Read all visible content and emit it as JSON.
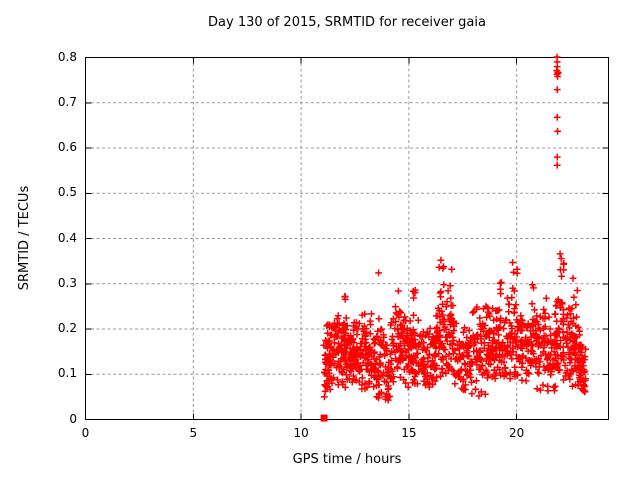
{
  "chart_data": {
    "type": "scatter",
    "title": "Day 130 of 2015, SRMTID for receiver gaia",
    "xlabel": "GPS time / hours",
    "ylabel": "SRMTID / TECUs",
    "xlim": [
      0,
      24.26
    ],
    "ylim": [
      0,
      0.8
    ],
    "xticks": [
      0,
      5,
      10,
      15,
      20
    ],
    "xtick_labels": [
      "0",
      "5",
      "10",
      "15",
      "20"
    ],
    "yticks": [
      0,
      0.1,
      0.2,
      0.3,
      0.4,
      0.5,
      0.6,
      0.7,
      0.8
    ],
    "ytick_labels": [
      "0",
      "0.1",
      "0.2",
      "0.3",
      "0.4",
      "0.5",
      "0.6",
      "0.7",
      "0.8"
    ],
    "grid": true,
    "legend": false,
    "marker": {
      "shape": "plus",
      "color": "#ff0000",
      "size": 7
    },
    "series": [
      {
        "name": "SRMTID",
        "seed": 20150130,
        "zero_point": {
          "x": 11.07,
          "y": 0.003,
          "marker": "filled-square"
        },
        "high_outlier_points": [
          [
            21.87,
            0.801
          ],
          [
            21.88,
            0.79
          ],
          [
            21.88,
            0.78
          ],
          [
            21.86,
            0.771
          ],
          [
            21.91,
            0.767
          ],
          [
            21.87,
            0.763
          ],
          [
            21.9,
            0.758
          ],
          [
            21.93,
            0.766
          ],
          [
            21.88,
            0.729
          ],
          [
            21.88,
            0.668
          ],
          [
            21.9,
            0.637
          ],
          [
            21.88,
            0.58
          ],
          [
            21.88,
            0.562
          ]
        ],
        "low_stray_points": [
          [
            11.08,
            0.05
          ],
          [
            11.12,
            0.062
          ],
          [
            13.92,
            0.045
          ],
          [
            13.97,
            0.056
          ],
          [
            14.03,
            0.05
          ],
          [
            17.62,
            0.066
          ],
          [
            18.25,
            0.052
          ],
          [
            18.36,
            0.061
          ],
          [
            18.55,
            0.056
          ],
          [
            20.95,
            0.068
          ],
          [
            21.1,
            0.065
          ],
          [
            21.22,
            0.076
          ],
          [
            22.85,
            0.075
          ],
          [
            23.02,
            0.068
          ],
          [
            23.12,
            0.073
          ]
        ],
        "cloud_bands": [
          {
            "x0": 11.05,
            "x1": 11.45,
            "n": 55,
            "c0": 0.13,
            "c1": 0.15,
            "spread": 0.045,
            "ymin": 0.045,
            "ymax": 0.22
          },
          {
            "x0": 11.45,
            "x1": 12.1,
            "n": 75,
            "c0": 0.155,
            "c1": 0.15,
            "spread": 0.042,
            "ymin": 0.07,
            "ymax": 0.26
          },
          {
            "x0": 12.1,
            "x1": 12.8,
            "n": 80,
            "c0": 0.15,
            "c1": 0.14,
            "spread": 0.04,
            "ymin": 0.08,
            "ymax": 0.25
          },
          {
            "x0": 12.8,
            "x1": 13.5,
            "n": 75,
            "c0": 0.14,
            "c1": 0.15,
            "spread": 0.045,
            "ymin": 0.06,
            "ymax": 0.27
          },
          {
            "x0": 13.5,
            "x1": 14.15,
            "n": 65,
            "c0": 0.12,
            "c1": 0.11,
            "spread": 0.045,
            "ymin": 0.04,
            "ymax": 0.22
          },
          {
            "x0": 14.15,
            "x1": 14.9,
            "n": 80,
            "c0": 0.16,
            "c1": 0.17,
            "spread": 0.045,
            "ymin": 0.08,
            "ymax": 0.27
          },
          {
            "x0": 14.9,
            "x1": 15.6,
            "n": 75,
            "c0": 0.16,
            "c1": 0.15,
            "spread": 0.045,
            "ymin": 0.07,
            "ymax": 0.27
          },
          {
            "x0": 15.6,
            "x1": 16.25,
            "n": 65,
            "c0": 0.13,
            "c1": 0.14,
            "spread": 0.04,
            "ymin": 0.07,
            "ymax": 0.24
          },
          {
            "x0": 16.25,
            "x1": 17.1,
            "n": 90,
            "c0": 0.17,
            "c1": 0.18,
            "spread": 0.05,
            "ymin": 0.09,
            "ymax": 0.31
          },
          {
            "x0": 17.1,
            "x1": 17.9,
            "n": 70,
            "c0": 0.14,
            "c1": 0.13,
            "spread": 0.045,
            "ymin": 0.06,
            "ymax": 0.25
          },
          {
            "x0": 17.9,
            "x1": 18.7,
            "n": 75,
            "c0": 0.15,
            "c1": 0.16,
            "spread": 0.05,
            "ymin": 0.05,
            "ymax": 0.26
          },
          {
            "x0": 18.7,
            "x1": 19.5,
            "n": 80,
            "c0": 0.17,
            "c1": 0.17,
            "spread": 0.045,
            "ymin": 0.09,
            "ymax": 0.28
          },
          {
            "x0": 19.5,
            "x1": 20.2,
            "n": 65,
            "c0": 0.18,
            "c1": 0.17,
            "spread": 0.05,
            "ymin": 0.09,
            "ymax": 0.3
          },
          {
            "x0": 20.2,
            "x1": 21.0,
            "n": 70,
            "c0": 0.16,
            "c1": 0.15,
            "spread": 0.045,
            "ymin": 0.065,
            "ymax": 0.27
          },
          {
            "x0": 21.0,
            "x1": 21.8,
            "n": 70,
            "c0": 0.15,
            "c1": 0.15,
            "spread": 0.045,
            "ymin": 0.06,
            "ymax": 0.26
          },
          {
            "x0": 21.8,
            "x1": 22.45,
            "n": 65,
            "c0": 0.17,
            "c1": 0.17,
            "spread": 0.05,
            "ymin": 0.08,
            "ymax": 0.3
          },
          {
            "x0": 22.45,
            "x1": 22.95,
            "n": 60,
            "c0": 0.16,
            "c1": 0.13,
            "spread": 0.05,
            "ymin": 0.065,
            "ymax": 0.285
          },
          {
            "x0": 22.95,
            "x1": 23.2,
            "n": 35,
            "c0": 0.115,
            "c1": 0.1,
            "spread": 0.032,
            "ymin": 0.06,
            "ymax": 0.19
          }
        ],
        "peak_spikes": [
          {
            "x": 12.05,
            "ytop": 0.272,
            "n": 4
          },
          {
            "x": 13.62,
            "ytop": 0.324,
            "n": 2
          },
          {
            "x": 14.55,
            "ytop": 0.284,
            "n": 3
          },
          {
            "x": 15.25,
            "ytop": 0.286,
            "n": 4
          },
          {
            "x": 16.45,
            "ytop": 0.352,
            "n": 7
          },
          {
            "x": 16.62,
            "ytop": 0.338,
            "n": 5
          },
          {
            "x": 16.95,
            "ytop": 0.332,
            "n": 6
          },
          {
            "x": 19.25,
            "ytop": 0.303,
            "n": 4
          },
          {
            "x": 19.85,
            "ytop": 0.347,
            "n": 6
          },
          {
            "x": 20.02,
            "ytop": 0.332,
            "n": 4
          },
          {
            "x": 20.75,
            "ytop": 0.298,
            "n": 3
          },
          {
            "x": 21.35,
            "ytop": 0.268,
            "n": 2
          },
          {
            "x": 22.05,
            "ytop": 0.366,
            "n": 6
          },
          {
            "x": 22.18,
            "ytop": 0.345,
            "n": 4
          },
          {
            "x": 22.62,
            "ytop": 0.312,
            "n": 3
          },
          {
            "x": 22.78,
            "ytop": 0.285,
            "n": 3
          }
        ]
      }
    ]
  },
  "colors": {
    "marker": "#ff0000",
    "grid": "#999999",
    "axis": "#000000",
    "background": "#ffffff",
    "text": "#000000"
  }
}
